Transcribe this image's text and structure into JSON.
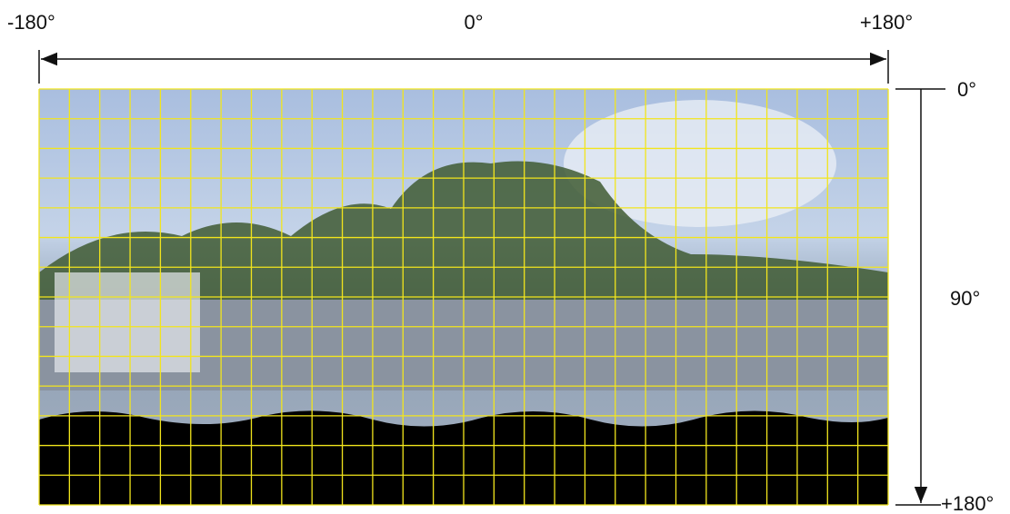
{
  "horizontal_axis": {
    "left_label": "-180°",
    "center_label": "0°",
    "right_label": "+180°"
  },
  "vertical_axis": {
    "top_label": "0°",
    "middle_label": "90°",
    "bottom_label": "+180°"
  }
}
